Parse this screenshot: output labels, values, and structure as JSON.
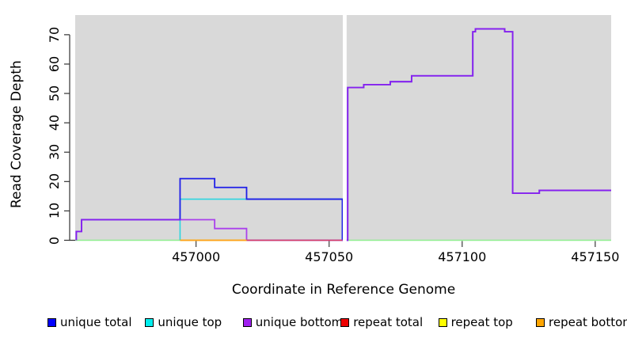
{
  "chart_data": {
    "type": "line",
    "variant": "step-coverage",
    "title": "",
    "xlabel": "Coordinate in Reference Genome",
    "ylabel": "Read Coverage Depth",
    "xlim": [
      456954.6,
      457156
    ],
    "ylim": [
      0,
      76.7
    ],
    "x_ticks": [
      {
        "value": 457000,
        "label": "457000"
      },
      {
        "value": 457050,
        "label": "457050"
      },
      {
        "value": 457100,
        "label": "457100"
      },
      {
        "value": 457150,
        "label": "457150"
      }
    ],
    "y_ticks": [
      {
        "value": 0,
        "label": "0"
      },
      {
        "value": 10,
        "label": "10"
      },
      {
        "value": 20,
        "label": "20"
      },
      {
        "value": 30,
        "label": "30"
      },
      {
        "value": 40,
        "label": "40"
      },
      {
        "value": 50,
        "label": "50"
      },
      {
        "value": 60,
        "label": "60"
      },
      {
        "value": 70,
        "label": "70"
      }
    ],
    "page_background": "#ffffff",
    "plot_background": "#d9d9d9",
    "gap_band": {
      "x_from": 457055.15,
      "x_to": 457056.6,
      "color": "#ffffff"
    },
    "baseline": {
      "name": "zero-baseline",
      "color": "#90ee90",
      "width": 1.4,
      "points": [
        [
          456954.6,
          0
        ],
        [
          457156,
          0
        ]
      ]
    },
    "series": [
      {
        "name": "unique top",
        "color": "#2bd5e0",
        "legend_color": "#00eeee",
        "width": 1.6,
        "opacity": 1,
        "points": [
          [
            456994,
            0
          ],
          [
            456994,
            14
          ],
          [
            457055,
            14
          ],
          [
            457055,
            0
          ]
        ]
      },
      {
        "name": "unique total",
        "color": "#1f1fe8",
        "legend_color": "#0000ff",
        "width": 1.8,
        "opacity": 1,
        "points": [
          [
            456955,
            0
          ],
          [
            456955,
            3
          ],
          [
            456957,
            3
          ],
          [
            456957,
            7
          ],
          [
            456994,
            7
          ],
          [
            456994,
            21
          ],
          [
            457007,
            21
          ],
          [
            457007,
            18
          ],
          [
            457019,
            18
          ],
          [
            457019,
            14
          ],
          [
            457055,
            14
          ],
          [
            457055,
            0
          ],
          [
            457057,
            0
          ],
          [
            457057,
            52
          ],
          [
            457063,
            52
          ],
          [
            457063,
            53
          ],
          [
            457073,
            53
          ],
          [
            457073,
            54
          ],
          [
            457081,
            54
          ],
          [
            457081,
            56
          ],
          [
            457104,
            56
          ],
          [
            457104,
            71
          ],
          [
            457105,
            71
          ],
          [
            457105,
            72
          ],
          [
            457116,
            72
          ],
          [
            457116,
            71
          ],
          [
            457119,
            71
          ],
          [
            457119,
            16
          ],
          [
            457129,
            16
          ],
          [
            457129,
            17
          ],
          [
            457156,
            17
          ]
        ]
      },
      {
        "name": "unique bottom",
        "color": "#a020f0",
        "legend_color": "#a020f0",
        "width": 1.8,
        "opacity": 0.82,
        "points": [
          [
            456955,
            0
          ],
          [
            456955,
            3
          ],
          [
            456957,
            3
          ],
          [
            456957,
            7
          ],
          [
            457007,
            7
          ],
          [
            457007,
            4
          ],
          [
            457019,
            4
          ],
          [
            457019,
            0
          ],
          [
            457057,
            0
          ],
          [
            457057,
            52
          ],
          [
            457063,
            52
          ],
          [
            457063,
            53
          ],
          [
            457073,
            53
          ],
          [
            457073,
            54
          ],
          [
            457081,
            54
          ],
          [
            457081,
            56
          ],
          [
            457104,
            56
          ],
          [
            457104,
            71
          ],
          [
            457105,
            71
          ],
          [
            457105,
            72
          ],
          [
            457116,
            72
          ],
          [
            457116,
            71
          ],
          [
            457119,
            71
          ],
          [
            457119,
            16
          ],
          [
            457129,
            16
          ],
          [
            457129,
            17
          ],
          [
            457156,
            17
          ]
        ]
      },
      {
        "name": "repeat total",
        "color": "#d63c64",
        "legend_color": "#ee0000",
        "width": 1.5,
        "opacity": 1,
        "points": [
          [
            457019,
            0
          ],
          [
            457055,
            0
          ]
        ]
      },
      {
        "name": "repeat top",
        "color": "#ffff00",
        "legend_color": "#ffff00",
        "width": 1.5,
        "opacity": 1,
        "points": [
          [
            456994,
            0
          ],
          [
            457019,
            0
          ]
        ]
      },
      {
        "name": "repeat bottom",
        "color": "#ff9f1a",
        "legend_color": "#ffa500",
        "width": 1.8,
        "opacity": 1,
        "points": [
          [
            456994,
            0
          ],
          [
            457019,
            0
          ]
        ]
      }
    ],
    "legend": [
      {
        "label": "unique total",
        "color": "#0000ff"
      },
      {
        "label": "unique top",
        "color": "#00eeee"
      },
      {
        "label": "unique bottom",
        "color": "#a020f0"
      },
      {
        "label": "repeat total",
        "color": "#ee0000"
      },
      {
        "label": "repeat top",
        "color": "#ffff00"
      },
      {
        "label": "repeat bottom",
        "color": "#ffa500"
      }
    ]
  }
}
